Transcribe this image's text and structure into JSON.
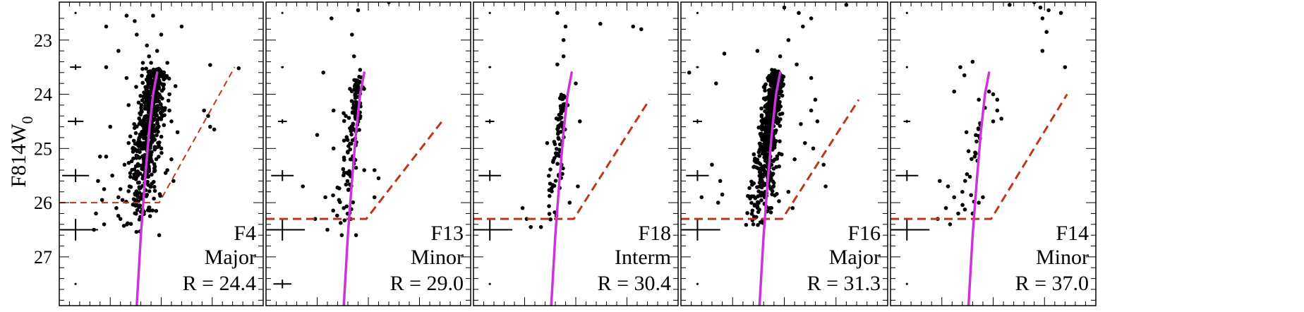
{
  "chart_data": {
    "type": "scatter",
    "ylabel": "F814W",
    "ylabel_subscript": "0",
    "ylim": [
      22.3,
      27.9
    ],
    "yticks": [
      23,
      24,
      25,
      26,
      27
    ],
    "xlim": [
      0,
      1
    ],
    "colors": {
      "points": "#000000",
      "isochrone": "#cc33dd",
      "limit": "#c0351b",
      "frame": "#000000"
    },
    "panels": [
      {
        "field": "F4",
        "type": "Major",
        "radius": "R = 24.4",
        "isochrone": [
          [
            0.38,
            27.9
          ],
          [
            0.4,
            26.6
          ],
          [
            0.42,
            25.6
          ],
          [
            0.44,
            24.7
          ],
          [
            0.46,
            24.0
          ],
          [
            0.48,
            23.6
          ]
        ],
        "limit": [
          [
            0.0,
            26.0
          ],
          [
            0.49,
            26.0
          ],
          [
            0.86,
            23.5
          ]
        ],
        "limit_style": "thin",
        "errorbars": [
          {
            "mag": 22.5,
            "size": 0.003
          },
          {
            "mag": 23.5,
            "size": 0.05
          },
          {
            "mag": 24.5,
            "size": 0.07
          },
          {
            "mag": 25.5,
            "size": 0.12
          },
          {
            "mag": 26.5,
            "size": 0.2
          },
          {
            "mag": 27.5,
            "size": 0.003
          }
        ],
        "points": [
          [
            0.33,
            22.55
          ],
          [
            0.46,
            22.55
          ],
          [
            0.37,
            22.65
          ],
          [
            0.23,
            22.75
          ],
          [
            0.38,
            22.9
          ],
          [
            0.5,
            22.9
          ],
          [
            0.6,
            22.75
          ],
          [
            0.43,
            23.1
          ],
          [
            0.29,
            23.2
          ],
          [
            0.48,
            23.2
          ],
          [
            0.44,
            23.3
          ],
          [
            0.41,
            23.42
          ],
          [
            0.45,
            23.42
          ],
          [
            0.53,
            23.42
          ],
          [
            0.23,
            23.5
          ],
          [
            0.74,
            23.46
          ],
          [
            0.88,
            23.52
          ],
          [
            0.33,
            23.7
          ],
          [
            0.52,
            23.7
          ],
          [
            0.57,
            23.85
          ],
          [
            0.54,
            24.0
          ],
          [
            0.71,
            24.3
          ],
          [
            0.73,
            24.4
          ],
          [
            0.74,
            24.6
          ],
          [
            0.76,
            24.65
          ],
          [
            0.25,
            24.6
          ],
          [
            0.54,
            24.3
          ],
          [
            0.34,
            24.2
          ],
          [
            0.55,
            24.5
          ],
          [
            0.58,
            24.7
          ],
          [
            0.2,
            25.15
          ],
          [
            0.23,
            25.15
          ],
          [
            0.26,
            25.5
          ],
          [
            0.19,
            25.6
          ],
          [
            0.22,
            25.75
          ],
          [
            0.3,
            25.75
          ],
          [
            0.21,
            25.95
          ],
          [
            0.31,
            25.95
          ],
          [
            0.18,
            26.2
          ],
          [
            0.22,
            26.4
          ],
          [
            0.17,
            26.5
          ],
          [
            0.49,
            26.6
          ],
          [
            0.28,
            26.1
          ],
          [
            0.3,
            26.3
          ],
          [
            0.53,
            25.4
          ],
          [
            0.55,
            25.2
          ],
          [
            0.56,
            25.6
          ],
          [
            0.34,
            24.9
          ],
          [
            0.32,
            25.3
          ],
          [
            0.29,
            25.9
          ],
          [
            0.36,
            25.0
          ]
        ],
        "cloud": {
          "n": 560,
          "top": 23.55,
          "bottom": 26.6,
          "x_at_bottom": 0.38,
          "x_at_top": 0.47,
          "spread_bottom": 0.09,
          "spread_top": 0.06
        }
      },
      {
        "field": "F13",
        "type": "Minor",
        "radius": "R = 29.0",
        "isochrone": [
          [
            0.38,
            27.9
          ],
          [
            0.4,
            26.6
          ],
          [
            0.42,
            25.6
          ],
          [
            0.44,
            24.7
          ],
          [
            0.46,
            24.0
          ],
          [
            0.48,
            23.6
          ]
        ],
        "limit": [
          [
            0.0,
            26.3
          ],
          [
            0.49,
            26.3
          ],
          [
            0.86,
            24.5
          ]
        ],
        "limit_style": "thick",
        "errorbars": [
          {
            "mag": 22.5,
            "size": 0.003
          },
          {
            "mag": 23.5,
            "size": 0.012
          },
          {
            "mag": 24.5,
            "size": 0.04
          },
          {
            "mag": 25.5,
            "size": 0.1
          },
          {
            "mag": 26.5,
            "size": 0.2
          },
          {
            "mag": 27.5,
            "size": 0.08
          }
        ],
        "points": [
          [
            0.6,
            22.3
          ],
          [
            0.45,
            22.45
          ],
          [
            0.32,
            22.6
          ],
          [
            0.42,
            22.9
          ],
          [
            0.43,
            23.3
          ],
          [
            0.46,
            23.55
          ],
          [
            0.28,
            23.6
          ],
          [
            0.41,
            23.9
          ],
          [
            0.45,
            24.05
          ],
          [
            0.33,
            24.3
          ],
          [
            0.39,
            24.4
          ],
          [
            0.25,
            24.75
          ],
          [
            0.33,
            25.0
          ],
          [
            0.48,
            25.4
          ],
          [
            0.53,
            25.4
          ],
          [
            0.55,
            25.55
          ],
          [
            0.18,
            25.7
          ],
          [
            0.29,
            25.9
          ],
          [
            0.53,
            25.9
          ],
          [
            0.38,
            26.1
          ],
          [
            0.24,
            26.3
          ],
          [
            0.3,
            26.5
          ],
          [
            0.37,
            26.6
          ],
          [
            0.44,
            26.6
          ]
        ],
        "cloud": {
          "n": 130,
          "top": 23.7,
          "bottom": 26.6,
          "x_at_bottom": 0.37,
          "x_at_top": 0.45,
          "spread_bottom": 0.07,
          "spread_top": 0.03
        }
      },
      {
        "field": "F18",
        "type": "Interm",
        "radius": "R = 30.4",
        "isochrone": [
          [
            0.38,
            27.9
          ],
          [
            0.4,
            26.6
          ],
          [
            0.42,
            25.6
          ],
          [
            0.44,
            24.7
          ],
          [
            0.46,
            24.0
          ],
          [
            0.48,
            23.6
          ]
        ],
        "limit": [
          [
            0.0,
            26.3
          ],
          [
            0.49,
            26.3
          ],
          [
            0.86,
            24.1
          ]
        ],
        "limit_style": "thick",
        "errorbars": [
          {
            "mag": 22.5,
            "size": 0.003
          },
          {
            "mag": 23.5,
            "size": 0.012
          },
          {
            "mag": 24.5,
            "size": 0.04
          },
          {
            "mag": 25.5,
            "size": 0.1
          },
          {
            "mag": 26.5,
            "size": 0.2
          },
          {
            "mag": 27.5,
            "size": 0.003
          }
        ],
        "points": [
          [
            0.41,
            22.5
          ],
          [
            0.45,
            22.75
          ],
          [
            0.62,
            22.7
          ],
          [
            0.78,
            22.75
          ],
          [
            0.82,
            22.8
          ],
          [
            0.44,
            23.0
          ],
          [
            0.44,
            23.3
          ],
          [
            0.41,
            23.45
          ],
          [
            0.5,
            23.8
          ],
          [
            0.52,
            24.5
          ],
          [
            0.46,
            24.2
          ],
          [
            0.36,
            24.9
          ],
          [
            0.24,
            26.1
          ],
          [
            0.26,
            26.3
          ],
          [
            0.28,
            26.45
          ],
          [
            0.33,
            26.45
          ],
          [
            0.47,
            26.0
          ],
          [
            0.51,
            25.7
          ]
        ],
        "cloud": {
          "n": 90,
          "top": 24.0,
          "bottom": 26.5,
          "x_at_bottom": 0.37,
          "x_at_top": 0.44,
          "spread_bottom": 0.06,
          "spread_top": 0.02
        }
      },
      {
        "field": "F16",
        "type": "Major",
        "radius": "R = 31.3",
        "isochrone": [
          [
            0.38,
            27.9
          ],
          [
            0.4,
            26.6
          ],
          [
            0.42,
            25.6
          ],
          [
            0.44,
            24.7
          ],
          [
            0.46,
            24.0
          ],
          [
            0.48,
            23.6
          ]
        ],
        "limit": [
          [
            0.0,
            26.3
          ],
          [
            0.49,
            26.3
          ],
          [
            0.86,
            24.1
          ]
        ],
        "limit_style": "thick",
        "errorbars": [
          {
            "mag": 22.5,
            "size": 0.003
          },
          {
            "mag": 23.5,
            "size": 0.012
          },
          {
            "mag": 24.5,
            "size": 0.04
          },
          {
            "mag": 25.5,
            "size": 0.1
          },
          {
            "mag": 26.5,
            "size": 0.2
          },
          {
            "mag": 27.5,
            "size": 0.003
          }
        ],
        "points": [
          [
            0.5,
            22.4
          ],
          [
            0.57,
            22.5
          ],
          [
            0.63,
            22.6
          ],
          [
            0.8,
            22.35
          ],
          [
            0.59,
            22.75
          ],
          [
            0.04,
            23.6
          ],
          [
            0.17,
            23.8
          ],
          [
            0.21,
            23.25
          ],
          [
            0.37,
            23.2
          ],
          [
            0.48,
            23.3
          ],
          [
            0.52,
            23.0
          ],
          [
            0.56,
            23.45
          ],
          [
            0.63,
            23.7
          ],
          [
            0.65,
            24.1
          ],
          [
            0.66,
            24.5
          ],
          [
            0.58,
            24.55
          ],
          [
            0.6,
            24.9
          ],
          [
            0.55,
            25.2
          ],
          [
            0.69,
            25.3
          ],
          [
            0.7,
            25.7
          ],
          [
            0.15,
            25.3
          ],
          [
            0.19,
            25.6
          ],
          [
            0.2,
            25.85
          ],
          [
            0.18,
            26.0
          ],
          [
            0.35,
            26.4
          ],
          [
            0.52,
            25.8
          ],
          [
            0.54,
            26.1
          ],
          [
            0.42,
            23.7
          ],
          [
            0.44,
            23.55
          ],
          [
            0.63,
            24.3
          ],
          [
            0.1,
            25.9
          ],
          [
            0.64,
            25.0
          ]
        ],
        "cloud": {
          "n": 600,
          "top": 23.6,
          "bottom": 26.5,
          "x_at_bottom": 0.37,
          "x_at_top": 0.46,
          "spread_bottom": 0.08,
          "spread_top": 0.04
        }
      },
      {
        "field": "F14",
        "type": "Minor",
        "radius": "R = 37.0",
        "isochrone": [
          [
            0.38,
            27.9
          ],
          [
            0.4,
            26.6
          ],
          [
            0.42,
            25.6
          ],
          [
            0.44,
            24.7
          ],
          [
            0.46,
            24.0
          ],
          [
            0.48,
            23.6
          ]
        ],
        "limit": [
          [
            0.0,
            26.3
          ],
          [
            0.49,
            26.3
          ],
          [
            0.86,
            24.0
          ]
        ],
        "limit_style": "thick",
        "errorbars": [
          {
            "mag": 22.5,
            "size": 0.003
          },
          {
            "mag": 23.5,
            "size": 0.003
          },
          {
            "mag": 24.5,
            "size": 0.03
          },
          {
            "mag": 25.5,
            "size": 0.1
          },
          {
            "mag": 26.5,
            "size": 0.2
          },
          {
            "mag": 27.5,
            "size": 0.003
          }
        ],
        "points": [
          [
            0.7,
            22.3
          ],
          [
            0.73,
            22.4
          ],
          [
            0.77,
            22.45
          ],
          [
            0.83,
            22.5
          ],
          [
            0.58,
            22.35
          ],
          [
            0.74,
            22.6
          ],
          [
            0.76,
            22.85
          ],
          [
            0.74,
            23.2
          ],
          [
            0.85,
            23.5
          ],
          [
            0.34,
            23.5
          ],
          [
            0.36,
            23.65
          ],
          [
            0.31,
            23.95
          ],
          [
            0.4,
            23.4
          ],
          [
            0.48,
            23.95
          ],
          [
            0.5,
            24.0
          ],
          [
            0.52,
            24.1
          ],
          [
            0.52,
            24.3
          ],
          [
            0.5,
            24.5
          ],
          [
            0.54,
            24.45
          ],
          [
            0.43,
            24.1
          ],
          [
            0.46,
            24.25
          ],
          [
            0.37,
            24.7
          ],
          [
            0.38,
            25.05
          ],
          [
            0.41,
            25.15
          ],
          [
            0.24,
            25.6
          ],
          [
            0.28,
            25.7
          ],
          [
            0.31,
            25.9
          ],
          [
            0.27,
            26.1
          ],
          [
            0.33,
            26.2
          ],
          [
            0.23,
            26.3
          ],
          [
            0.29,
            26.4
          ],
          [
            0.43,
            26.0
          ],
          [
            0.45,
            25.9
          ],
          [
            0.4,
            26.2
          ],
          [
            0.35,
            25.8
          ]
        ],
        "cloud": {
          "n": 20,
          "top": 24.5,
          "bottom": 26.3,
          "x_at_bottom": 0.36,
          "x_at_top": 0.43,
          "spread_bottom": 0.05,
          "spread_top": 0.02
        }
      }
    ]
  }
}
